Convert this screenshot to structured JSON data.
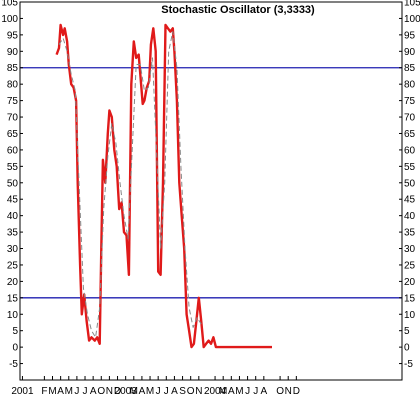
{
  "chart_data": {
    "type": "line",
    "title": "Stochastic Oscillator (3,3333)",
    "xlabel": "",
    "ylabel": "",
    "ylim": [
      -10,
      105
    ],
    "xlim": [
      0,
      47
    ],
    "grid": false,
    "y_ticks": [
      -5,
      0,
      5,
      10,
      15,
      20,
      25,
      30,
      35,
      40,
      45,
      50,
      55,
      60,
      65,
      70,
      75,
      80,
      85,
      90,
      95,
      100,
      105
    ],
    "x_ticks": [
      {
        "label": "2001",
        "x": 0.3
      },
      {
        "label": "F",
        "x": 3
      },
      {
        "label": "M",
        "x": 4
      },
      {
        "label": "A",
        "x": 5
      },
      {
        "label": "M",
        "x": 6
      },
      {
        "label": "J",
        "x": 7
      },
      {
        "label": "J",
        "x": 8
      },
      {
        "label": "A",
        "x": 9
      },
      {
        "label": "O",
        "x": 10
      },
      {
        "label": "N",
        "x": 11
      },
      {
        "label": "D",
        "x": 12
      },
      {
        "label": "2003",
        "x": 13
      },
      {
        "label": "M",
        "x": 14
      },
      {
        "label": "A",
        "x": 15
      },
      {
        "label": "M",
        "x": 16
      },
      {
        "label": "J",
        "x": 17
      },
      {
        "label": "J",
        "x": 18
      },
      {
        "label": "A",
        "x": 19
      },
      {
        "label": "S",
        "x": 20
      },
      {
        "label": "O",
        "x": 21
      },
      {
        "label": "N",
        "x": 22
      },
      {
        "label": "2004",
        "x": 24
      },
      {
        "label": "M",
        "x": 25
      },
      {
        "label": "A",
        "x": 26
      },
      {
        "label": "M",
        "x": 27
      },
      {
        "label": "J",
        "x": 28
      },
      {
        "label": "J",
        "x": 29
      },
      {
        "label": "A",
        "x": 30
      },
      {
        "label": "O",
        "x": 32
      },
      {
        "label": "N",
        "x": 33
      },
      {
        "label": "D",
        "x": 34
      }
    ],
    "reference_lines": [
      {
        "value": 85,
        "color": "#1f1fb0"
      },
      {
        "value": 15,
        "color": "#1f1fb0"
      }
    ],
    "series": [
      {
        "color": "#e01a1a",
        "style": "solid",
        "x": [
          4.5,
          4.8,
          5.0,
          5.3,
          5.5,
          5.8,
          6.0,
          6.3,
          6.6,
          6.9,
          7.1,
          7.4,
          7.6,
          7.9,
          8.2,
          8.5,
          8.8,
          9.2,
          9.5,
          9.8,
          10.0,
          10.2,
          10.5,
          10.8,
          11.0,
          11.3,
          11.6,
          11.9,
          12.2,
          12.5,
          12.8,
          13.1,
          13.4,
          13.7,
          14.0,
          14.3,
          14.6,
          14.9,
          15.1,
          15.3,
          15.6,
          15.9,
          16.1,
          16.4,
          16.7,
          17.0,
          17.3,
          17.6,
          17.9,
          18.2,
          18.5,
          18.8,
          19.0,
          19.3,
          19.6,
          19.9,
          20.2,
          20.5,
          20.8,
          21.1,
          21.4,
          21.7,
          22.0,
          22.3,
          22.6,
          22.9,
          23.2,
          23.5,
          23.8,
          24.1,
          24.4,
          24.7,
          25.0,
          25.3,
          25.6,
          25.9,
          26.2,
          26.5,
          26.8,
          27.1,
          27.4,
          27.7,
          28.0,
          28.3,
          28.6,
          28.9,
          29.2,
          29.5,
          29.8,
          30.1,
          30.4,
          30.7,
          31.0
        ],
        "values": [
          89,
          91,
          98,
          95,
          97,
          93,
          86,
          80,
          79,
          75,
          50,
          25,
          10,
          16,
          8,
          2,
          3,
          2,
          3,
          1,
          30,
          57,
          50,
          65,
          72,
          70,
          60,
          55,
          42,
          44,
          35,
          34,
          22,
          80,
          93,
          88,
          89,
          80,
          74,
          75,
          79,
          81,
          92,
          97,
          90,
          23,
          22,
          50,
          98,
          97,
          96,
          97,
          90,
          75,
          50,
          40,
          30,
          10,
          5,
          0,
          1,
          8,
          15,
          8,
          0,
          1,
          2,
          1,
          3,
          0,
          0,
          0,
          0,
          0,
          0,
          0,
          0,
          0,
          0,
          0,
          0,
          0,
          0,
          0,
          0,
          0,
          0,
          0,
          0,
          0,
          0,
          0,
          0
        ]
      },
      {
        "color": "#888888",
        "style": "dashed",
        "x": [
          4.8,
          5.3,
          5.8,
          6.3,
          6.8,
          7.3,
          7.8,
          8.3,
          8.8,
          9.3,
          9.8,
          10.3,
          10.8,
          11.3,
          11.8,
          12.3,
          12.8,
          13.3,
          13.8,
          14.3,
          14.8,
          15.3,
          15.8,
          16.3,
          16.8,
          17.3,
          17.8,
          18.3,
          18.8,
          19.3,
          19.8,
          20.3,
          20.8,
          21.3,
          21.8,
          22.3
        ],
        "values": [
          92,
          94,
          90,
          83,
          78,
          48,
          18,
          10,
          5,
          3,
          12,
          42,
          58,
          68,
          62,
          50,
          40,
          33,
          60,
          86,
          86,
          78,
          79,
          88,
          60,
          30,
          50,
          90,
          96,
          85,
          55,
          30,
          12,
          6,
          9,
          7
        ]
      }
    ]
  }
}
